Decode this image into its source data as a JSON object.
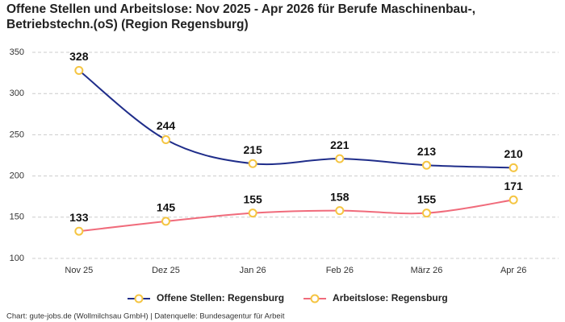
{
  "chart_data": {
    "type": "line",
    "title": [
      "Offene Stellen und Arbeitslose: Nov 2025 - Apr 2026 für Berufe Maschinenbau-,",
      "Betriebstechn.(oS) (Region Regensburg)"
    ],
    "categories": [
      "Nov 25",
      "Dez 25",
      "Jan 26",
      "Feb 26",
      "März 26",
      "Apr 26"
    ],
    "series": [
      {
        "name": "Offene Stellen: Regensburg",
        "color": "#1f2d8a",
        "values": [
          328,
          244,
          215,
          221,
          213,
          210
        ]
      },
      {
        "name": "Arbeitslose: Regensburg",
        "color": "#f06b7b",
        "values": [
          133,
          145,
          155,
          158,
          155,
          171
        ]
      }
    ],
    "marker_color": "#f5c542",
    "ylim": [
      100,
      350
    ],
    "yticks": [
      100,
      150,
      200,
      250,
      300,
      350
    ],
    "grid": true,
    "source": "Chart: gute-jobs.de (Wollmilchsau GmbH) | Datenquelle: Bundesagentur für Arbeit"
  }
}
